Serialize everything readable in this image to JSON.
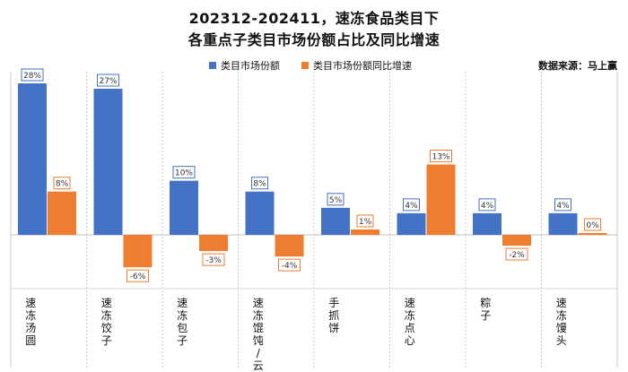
{
  "chart_data": {
    "type": "bar",
    "title_line1": "202312-202411，速冻食品类目下",
    "title_line2": "各重点子类目市场份额占比及同比增速",
    "source": "数据来源：马上赢",
    "categories": [
      "速冻汤圆",
      "速冻饺子",
      "速冻包子",
      "速冻馄饨/云吞",
      "手抓饼",
      "速冻点心",
      "粽子",
      "速冻馒头"
    ],
    "series": [
      {
        "name": "类目市场份额",
        "color": "#4472c4",
        "values": [
          28,
          27,
          10,
          8,
          5,
          4,
          4,
          4
        ],
        "labels": [
          "28%",
          "27%",
          "10%",
          "8%",
          "5%",
          "4%",
          "4%",
          "4%"
        ]
      },
      {
        "name": "类目市场份额同比增速",
        "color": "#ed7d31",
        "values": [
          8,
          -6,
          -3,
          -4,
          1,
          13,
          -2,
          0
        ],
        "labels": [
          "8%",
          "-6%",
          "-3%",
          "-4%",
          "1%",
          "13%",
          "-2%",
          "0%"
        ]
      }
    ],
    "grid": "vertical category separators"
  }
}
